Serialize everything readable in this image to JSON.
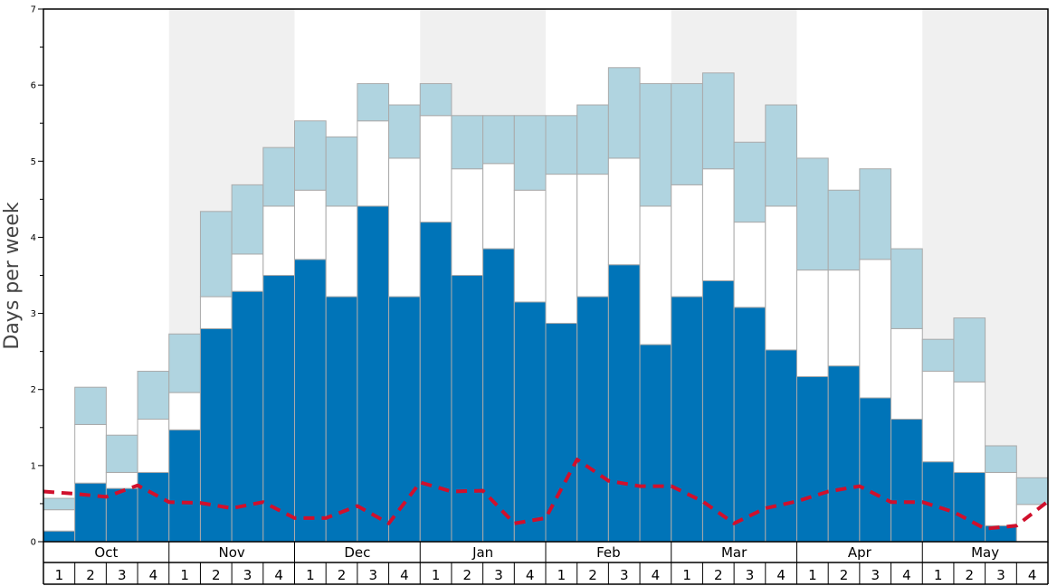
{
  "chart_data": {
    "type": "bar",
    "ylabel": "Days per week",
    "ylim": [
      0,
      7
    ],
    "y_ticks": [
      "0",
      "1",
      "2",
      "3",
      "4",
      "5",
      "6",
      "7"
    ],
    "months": [
      "Oct",
      "Nov",
      "Dec",
      "Jan",
      "Feb",
      "Mar",
      "Apr",
      "May"
    ],
    "week_labels": [
      "1",
      "2",
      "3",
      "4"
    ],
    "stacked": true,
    "colors": {
      "dark": "#0074b8",
      "middle": "#ffffff",
      "light": "#b0d4e0",
      "dashed_line": "#d0102c",
      "shade": "#f0f0f0",
      "bar_border": "#aaaaaa"
    },
    "series": [
      {
        "key": "dark",
        "values": [
          0.14,
          0.77,
          0.7,
          0.91,
          1.47,
          2.8,
          3.29,
          3.5,
          3.71,
          3.22,
          4.41,
          3.22,
          4.2,
          3.5,
          3.85,
          3.15,
          2.87,
          3.22,
          3.64,
          2.59,
          3.22,
          3.43,
          3.08,
          2.52,
          2.17,
          2.31,
          1.89,
          1.61,
          1.05,
          0.91,
          0.21,
          0
        ]
      },
      {
        "key": "middle",
        "values": [
          0.28,
          0.77,
          0.21,
          0.7,
          0.49,
          0.42,
          0.49,
          0.91,
          0.91,
          1.19,
          1.12,
          1.82,
          1.4,
          1.4,
          1.12,
          1.47,
          1.96,
          1.61,
          1.4,
          1.82,
          1.47,
          1.47,
          1.12,
          1.89,
          1.4,
          1.26,
          1.82,
          1.19,
          1.19,
          1.19,
          0.7,
          0.49
        ]
      },
      {
        "key": "light",
        "values": [
          0.15,
          0.49,
          0.49,
          0.63,
          0.77,
          1.12,
          0.91,
          0.77,
          0.91,
          0.91,
          0.49,
          0.7,
          0.42,
          0.7,
          0.63,
          0.98,
          0.77,
          0.91,
          1.19,
          1.61,
          1.33,
          1.26,
          1.05,
          1.33,
          1.47,
          1.05,
          1.19,
          1.05,
          0.42,
          0.84,
          0.35,
          0.35
        ]
      }
    ],
    "dashed_line": [
      0.66,
      0.63,
      0.59,
      0.74,
      0.52,
      0.51,
      0.44,
      0.52,
      0.31,
      0.31,
      0.47,
      0.24,
      0.78,
      0.66,
      0.67,
      0.24,
      0.31,
      1.08,
      0.8,
      0.73,
      0.73,
      0.53,
      0.24,
      0.44,
      0.53,
      0.66,
      0.73,
      0.52,
      0.52,
      0.39,
      0.17,
      0.21,
      0.53
    ]
  }
}
